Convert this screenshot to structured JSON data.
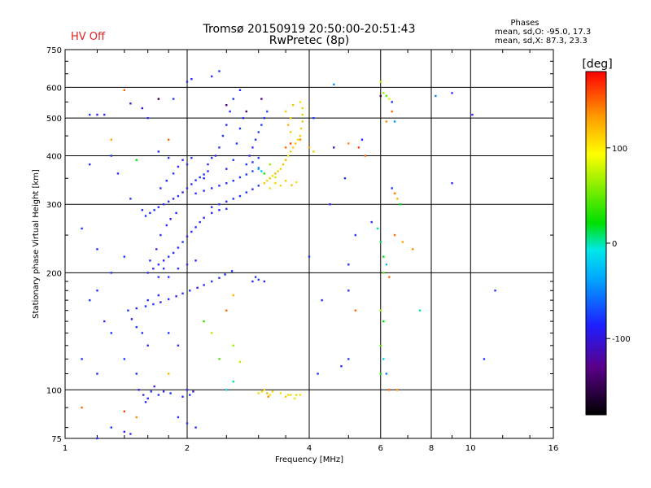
{
  "header": {
    "status": "HV Off",
    "title_line1": "Tromsø 20150919 20:50:00-20:51:43",
    "title_line2": "RwPretec (8p)",
    "stats_title": "Phases",
    "stats_line1": "mean, sd,O: -95.0, 17.3",
    "stats_line2": "mean, sd,X:  87.3, 23.3"
  },
  "colors": {
    "grid": "#000000",
    "status": "#e02020"
  },
  "colorbar": {
    "unit": "[deg]",
    "range": [
      -180,
      180
    ],
    "ticks": [
      {
        "value": 100,
        "label": "100"
      },
      {
        "value": 0,
        "label": "0"
      },
      {
        "value": -100,
        "label": "-100"
      }
    ]
  },
  "chart_data": {
    "type": "scatter",
    "xlabel": "Frequency [MHz]",
    "ylabel": "Stationary phase Virtual Height [km]",
    "xscale": "log",
    "yscale": "log",
    "xlim": [
      1,
      16
    ],
    "ylim": [
      75,
      750
    ],
    "xticks": [
      {
        "value": 1,
        "label": "1"
      },
      {
        "value": 2,
        "label": "2"
      },
      {
        "value": 4,
        "label": "4"
      },
      {
        "value": 6,
        "label": "6"
      },
      {
        "value": 8,
        "label": "8"
      },
      {
        "value": 10,
        "label": "10"
      },
      {
        "value": 16,
        "label": "16"
      }
    ],
    "yticks": [
      {
        "value": 75,
        "label": "75"
      },
      {
        "value": 100,
        "label": "100"
      },
      {
        "value": 200,
        "label": "200"
      },
      {
        "value": 300,
        "label": "300"
      },
      {
        "value": 400,
        "label": "400"
      },
      {
        "value": 500,
        "label": "500"
      },
      {
        "value": 600,
        "label": "600"
      },
      {
        "value": 750,
        "label": "750"
      }
    ],
    "grid_x": [
      2,
      4,
      6,
      8,
      10
    ],
    "grid_y": [
      100,
      200,
      300,
      400,
      500,
      600
    ],
    "points": [
      [
        1.52,
        100,
        -115
      ],
      [
        1.56,
        97,
        -105
      ],
      [
        1.6,
        95,
        -110
      ],
      [
        1.63,
        99,
        -100
      ],
      [
        1.66,
        102,
        -112
      ],
      [
        1.58,
        93,
        -108
      ],
      [
        1.7,
        97,
        -100
      ],
      [
        1.75,
        99,
        -115
      ],
      [
        1.82,
        98,
        -110
      ],
      [
        1.95,
        96,
        -105
      ],
      [
        2.0,
        100,
        -110
      ],
      [
        2.03,
        97,
        -95
      ],
      [
        2.07,
        99,
        -120
      ],
      [
        3.0,
        98,
        100
      ],
      [
        3.06,
        99,
        105
      ],
      [
        3.1,
        100,
        110
      ],
      [
        3.15,
        98,
        120
      ],
      [
        3.2,
        97,
        98
      ],
      [
        3.25,
        99,
        102
      ],
      [
        3.4,
        98,
        95
      ],
      [
        3.5,
        96,
        110
      ],
      [
        3.55,
        97,
        105
      ],
      [
        3.6,
        97,
        100
      ],
      [
        3.68,
        95,
        95
      ],
      [
        3.72,
        97,
        105
      ],
      [
        3.8,
        97,
        100
      ],
      [
        3.17,
        96,
        140
      ],
      [
        1.43,
        160,
        -100
      ],
      [
        1.5,
        162,
        -110
      ],
      [
        1.58,
        164,
        -105
      ],
      [
        1.65,
        166,
        -95
      ],
      [
        1.72,
        168,
        -115
      ],
      [
        1.8,
        171,
        -100
      ],
      [
        1.88,
        174,
        -110
      ],
      [
        1.95,
        177,
        -105
      ],
      [
        2.03,
        180,
        -100
      ],
      [
        2.12,
        183,
        -112
      ],
      [
        2.2,
        186,
        -108
      ],
      [
        2.3,
        190,
        -100
      ],
      [
        2.4,
        194,
        -110
      ],
      [
        2.48,
        198,
        -105
      ],
      [
        2.58,
        202,
        -95
      ],
      [
        1.46,
        152,
        -115
      ],
      [
        1.5,
        145,
        -100
      ],
      [
        1.55,
        140,
        -110
      ],
      [
        1.6,
        170,
        -105
      ],
      [
        1.7,
        175,
        -112
      ],
      [
        1.6,
        200,
        -100
      ],
      [
        1.65,
        205,
        -110
      ],
      [
        1.7,
        210,
        -105
      ],
      [
        1.75,
        215,
        -115
      ],
      [
        1.8,
        220,
        -100
      ],
      [
        1.85,
        225,
        -108
      ],
      [
        1.9,
        232,
        -110
      ],
      [
        1.95,
        240,
        -100
      ],
      [
        2.0,
        248,
        -112
      ],
      [
        2.05,
        255,
        -105
      ],
      [
        2.1,
        262,
        -110
      ],
      [
        2.15,
        270,
        -100
      ],
      [
        2.2,
        277,
        -108
      ],
      [
        2.3,
        285,
        -110
      ],
      [
        2.4,
        290,
        -100
      ],
      [
        2.5,
        292,
        -105
      ],
      [
        1.62,
        215,
        -100
      ],
      [
        1.68,
        230,
        -110
      ],
      [
        1.72,
        250,
        -105
      ],
      [
        1.78,
        265,
        -100
      ],
      [
        1.82,
        275,
        -112
      ],
      [
        1.88,
        285,
        -110
      ],
      [
        1.7,
        195,
        -100
      ],
      [
        1.75,
        205,
        -108
      ],
      [
        1.8,
        195,
        -110
      ],
      [
        1.9,
        205,
        -105
      ],
      [
        2.0,
        210,
        -100
      ],
      [
        2.1,
        215,
        -110
      ],
      [
        1.58,
        280,
        -110
      ],
      [
        1.62,
        285,
        -105
      ],
      [
        1.66,
        290,
        -100
      ],
      [
        1.7,
        295,
        -110
      ],
      [
        1.75,
        300,
        -108
      ],
      [
        1.8,
        305,
        -100
      ],
      [
        1.85,
        310,
        -112
      ],
      [
        1.9,
        315,
        -105
      ],
      [
        1.95,
        322,
        -110
      ],
      [
        2.0,
        330,
        -100
      ],
      [
        2.05,
        338,
        -108
      ],
      [
        2.1,
        346,
        -110
      ],
      [
        2.15,
        352,
        -105
      ],
      [
        2.2,
        358,
        -100
      ],
      [
        2.25,
        365,
        -110
      ],
      [
        1.72,
        330,
        -105
      ],
      [
        1.78,
        345,
        -110
      ],
      [
        1.85,
        360,
        -100
      ],
      [
        1.9,
        375,
        -108
      ],
      [
        1.95,
        390,
        -110
      ],
      [
        2.0,
        380,
        -105
      ],
      [
        2.05,
        395,
        -100
      ],
      [
        1.7,
        410,
        -110
      ],
      [
        1.8,
        395,
        -108
      ],
      [
        2.1,
        320,
        -100
      ],
      [
        2.2,
        325,
        -110
      ],
      [
        2.3,
        330,
        -105
      ],
      [
        2.4,
        335,
        -100
      ],
      [
        2.5,
        340,
        -110
      ],
      [
        2.6,
        345,
        -108
      ],
      [
        2.7,
        352,
        -95
      ],
      [
        2.8,
        358,
        -100
      ],
      [
        2.9,
        365,
        -85
      ],
      [
        3.0,
        372,
        -80
      ],
      [
        2.6,
        310,
        -110
      ],
      [
        2.7,
        315,
        -105
      ],
      [
        2.8,
        322,
        -100
      ],
      [
        2.9,
        328,
        -110
      ],
      [
        3.0,
        335,
        -90
      ],
      [
        2.4,
        300,
        -105
      ],
      [
        2.5,
        305,
        -100
      ],
      [
        2.3,
        295,
        -110
      ],
      [
        2.35,
        400,
        -110
      ],
      [
        2.4,
        420,
        -105
      ],
      [
        2.45,
        450,
        -100
      ],
      [
        2.5,
        480,
        -110
      ],
      [
        2.55,
        520,
        -108
      ],
      [
        2.6,
        560,
        -100
      ],
      [
        2.25,
        380,
        -110
      ],
      [
        2.3,
        395,
        -105
      ],
      [
        2.65,
        430,
        -95
      ],
      [
        2.7,
        470,
        -100
      ],
      [
        2.75,
        500,
        -110
      ],
      [
        2.2,
        350,
        -108
      ],
      [
        2.6,
        390,
        -100
      ],
      [
        2.5,
        370,
        -105
      ],
      [
        2.8,
        380,
        -100
      ],
      [
        2.85,
        400,
        -110
      ],
      [
        2.9,
        420,
        -105
      ],
      [
        2.95,
        440,
        -100
      ],
      [
        3.0,
        460,
        -90
      ],
      [
        3.05,
        480,
        -95
      ],
      [
        3.1,
        500,
        -100
      ],
      [
        3.15,
        520,
        -85
      ],
      [
        2.9,
        385,
        -100
      ],
      [
        3.0,
        395,
        -95
      ],
      [
        3.1,
        340,
        110
      ],
      [
        3.15,
        345,
        105
      ],
      [
        3.2,
        350,
        115
      ],
      [
        3.25,
        355,
        100
      ],
      [
        3.3,
        360,
        120
      ],
      [
        3.35,
        365,
        110
      ],
      [
        3.4,
        370,
        105
      ],
      [
        3.45,
        380,
        115
      ],
      [
        3.5,
        390,
        120
      ],
      [
        3.55,
        400,
        100
      ],
      [
        3.6,
        410,
        110
      ],
      [
        3.65,
        420,
        105
      ],
      [
        3.7,
        430,
        115
      ],
      [
        3.75,
        440,
        100
      ],
      [
        3.8,
        450,
        110
      ],
      [
        3.82,
        470,
        105
      ],
      [
        3.85,
        490,
        115
      ],
      [
        3.85,
        510,
        110
      ],
      [
        3.85,
        530,
        105
      ],
      [
        3.8,
        550,
        100
      ],
      [
        3.6,
        460,
        110
      ],
      [
        3.55,
        480,
        120
      ],
      [
        3.6,
        500,
        105
      ],
      [
        3.5,
        520,
        110
      ],
      [
        3.65,
        540,
        115
      ],
      [
        3.3,
        340,
        100
      ],
      [
        3.4,
        335,
        105
      ],
      [
        3.5,
        345,
        110
      ],
      [
        3.62,
        336,
        115
      ],
      [
        3.72,
        342,
        100
      ],
      [
        3.2,
        330,
        90
      ],
      [
        3.3,
        352,
        80
      ],
      [
        3.0,
        370,
        -40
      ],
      [
        3.05,
        365,
        -20
      ],
      [
        3.1,
        360,
        30
      ],
      [
        3.2,
        380,
        60
      ],
      [
        2.9,
        190,
        -110
      ],
      [
        2.95,
        195,
        -105
      ],
      [
        3.0,
        192,
        -100
      ],
      [
        3.1,
        190,
        -108
      ],
      [
        1.15,
        510,
        -100
      ],
      [
        1.2,
        510,
        -110
      ],
      [
        1.25,
        510,
        -105
      ],
      [
        1.6,
        500,
        -110
      ],
      [
        1.85,
        560,
        -100
      ],
      [
        2.0,
        620,
        -105
      ],
      [
        2.05,
        630,
        -110
      ],
      [
        2.3,
        640,
        -100
      ],
      [
        2.4,
        660,
        -105
      ],
      [
        2.7,
        590,
        -110
      ],
      [
        4.6,
        610,
        -50
      ],
      [
        4.1,
        500,
        -100
      ],
      [
        6.0,
        570,
        -150
      ],
      [
        1.4,
        590,
        150
      ],
      [
        1.3,
        440,
        130
      ],
      [
        1.5,
        390,
        20
      ],
      [
        1.8,
        440,
        150
      ],
      [
        3.5,
        420,
        150
      ],
      [
        3.6,
        430,
        160
      ],
      [
        3.8,
        440,
        140
      ],
      [
        4.0,
        420,
        130
      ],
      [
        4.1,
        410,
        110
      ],
      [
        5.0,
        430,
        140
      ],
      [
        5.3,
        420,
        160
      ],
      [
        5.5,
        400,
        150
      ],
      [
        6.0,
        620,
        80
      ],
      [
        6.1,
        580,
        60
      ],
      [
        6.2,
        570,
        40
      ],
      [
        6.3,
        560,
        90
      ],
      [
        6.4,
        520,
        150
      ],
      [
        6.5,
        490,
        -50
      ],
      [
        6.4,
        330,
        -100
      ],
      [
        6.5,
        320,
        160
      ],
      [
        1.15,
        380,
        -110
      ],
      [
        1.3,
        400,
        -100
      ],
      [
        1.35,
        360,
        -110
      ],
      [
        1.45,
        310,
        -100
      ],
      [
        1.55,
        290,
        -110
      ],
      [
        1.1,
        260,
        -100
      ],
      [
        1.2,
        230,
        -110
      ],
      [
        1.3,
        200,
        -105
      ],
      [
        1.4,
        220,
        -100
      ],
      [
        1.2,
        180,
        -110
      ],
      [
        1.15,
        170,
        -100
      ],
      [
        1.25,
        150,
        -110
      ],
      [
        1.3,
        140,
        -105
      ],
      [
        1.1,
        120,
        -100
      ],
      [
        1.2,
        110,
        -110
      ],
      [
        1.4,
        120,
        -100
      ],
      [
        1.5,
        110,
        -105
      ],
      [
        1.6,
        130,
        -110
      ],
      [
        1.8,
        140,
        -100
      ],
      [
        1.9,
        130,
        -110
      ],
      [
        1.3,
        80,
        -100
      ],
      [
        1.4,
        78,
        -110
      ],
      [
        1.45,
        77,
        -105
      ],
      [
        1.9,
        85,
        -110
      ],
      [
        2.0,
        82,
        -100
      ],
      [
        2.1,
        80,
        -105
      ],
      [
        1.2,
        75,
        -110
      ],
      [
        1.1,
        90,
        150
      ],
      [
        1.4,
        88,
        160
      ],
      [
        1.5,
        85,
        140
      ],
      [
        1.8,
        110,
        120
      ],
      [
        2.5,
        100,
        -20
      ],
      [
        2.6,
        105,
        0
      ],
      [
        2.4,
        120,
        40
      ],
      [
        2.7,
        118,
        80
      ],
      [
        2.6,
        130,
        60
      ],
      [
        2.2,
        150,
        30
      ],
      [
        2.3,
        140,
        70
      ],
      [
        2.5,
        160,
        150
      ],
      [
        2.6,
        175,
        120
      ],
      [
        4.5,
        300,
        -110
      ],
      [
        4.0,
        220,
        -100
      ],
      [
        4.3,
        170,
        -110
      ],
      [
        5.0,
        180,
        -100
      ],
      [
        5.2,
        250,
        -105
      ],
      [
        5.7,
        270,
        -110
      ],
      [
        5.9,
        260,
        0
      ],
      [
        6.0,
        240,
        10
      ],
      [
        6.1,
        220,
        20
      ],
      [
        6.2,
        210,
        -30
      ],
      [
        6.1,
        200,
        40
      ],
      [
        6.3,
        195,
        150
      ],
      [
        6.0,
        160,
        60
      ],
      [
        6.1,
        150,
        20
      ],
      [
        6.0,
        130,
        40
      ],
      [
        6.1,
        120,
        -20
      ],
      [
        6.0,
        110,
        30
      ],
      [
        6.3,
        100,
        150
      ],
      [
        6.6,
        100,
        140
      ],
      [
        6.5,
        250,
        150
      ],
      [
        6.8,
        240,
        130
      ],
      [
        7.2,
        230,
        140
      ],
      [
        7.5,
        160,
        0
      ],
      [
        4.2,
        110,
        -100
      ],
      [
        4.8,
        115,
        -110
      ],
      [
        5.0,
        120,
        -90
      ],
      [
        6.2,
        110,
        -60
      ],
      [
        6.5,
        320,
        140
      ],
      [
        6.6,
        310,
        120
      ],
      [
        9.0,
        340,
        -110
      ],
      [
        10.1,
        510,
        -110
      ],
      [
        11.5,
        180,
        -100
      ],
      [
        10.8,
        120,
        -100
      ],
      [
        9.0,
        580,
        -110
      ],
      [
        8.2,
        570,
        -60
      ],
      [
        5.2,
        160,
        150
      ],
      [
        5.0,
        210,
        -110
      ],
      [
        5.4,
        440,
        -110
      ],
      [
        4.9,
        350,
        -100
      ],
      [
        4.6,
        420,
        -120
      ],
      [
        6.7,
        300,
        20
      ],
      [
        6.4,
        550,
        -100
      ],
      [
        6.2,
        490,
        140
      ],
      [
        1.45,
        545,
        -120
      ],
      [
        1.55,
        530,
        -120
      ],
      [
        1.7,
        560,
        -150
      ],
      [
        2.5,
        540,
        -130
      ],
      [
        2.8,
        520,
        -140
      ],
      [
        3.05,
        560,
        -130
      ]
    ]
  }
}
